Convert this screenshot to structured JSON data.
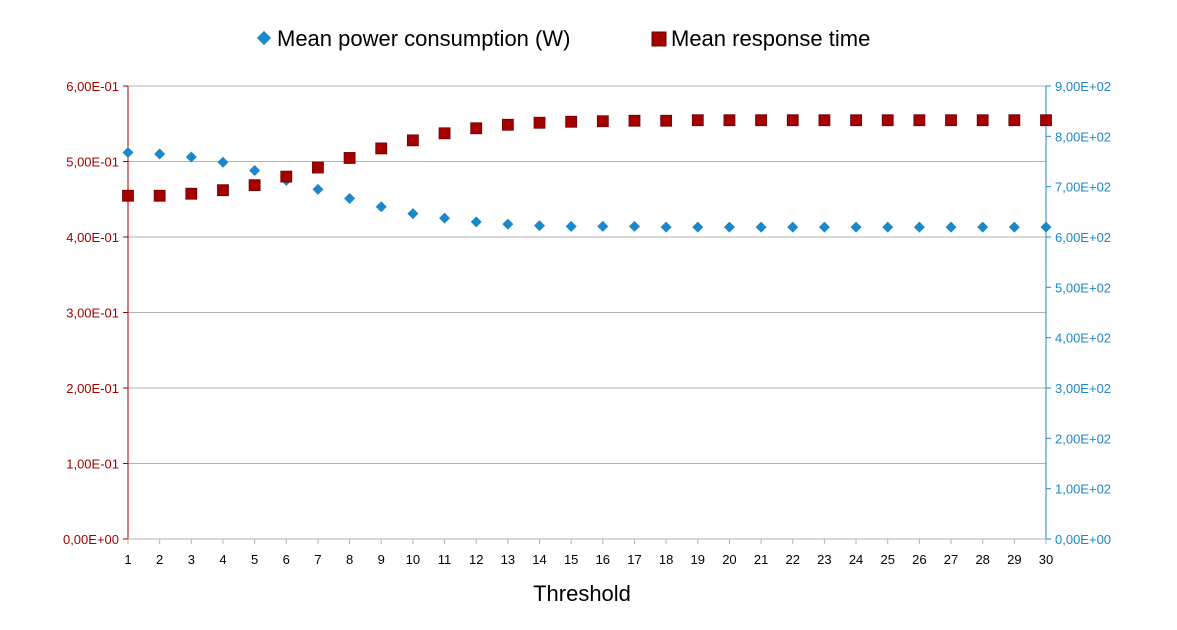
{
  "chart_data": {
    "type": "scatter",
    "xlabel": "Threshold",
    "x": [
      1,
      2,
      3,
      4,
      5,
      6,
      7,
      8,
      9,
      10,
      11,
      12,
      13,
      14,
      15,
      16,
      17,
      18,
      19,
      20,
      21,
      22,
      23,
      24,
      25,
      26,
      27,
      28,
      29,
      30
    ],
    "x_ticks": [
      "1",
      "2",
      "3",
      "4",
      "5",
      "6",
      "7",
      "8",
      "9",
      "10",
      "11",
      "12",
      "13",
      "14",
      "15",
      "16",
      "17",
      "18",
      "19",
      "20",
      "21",
      "22",
      "23",
      "24",
      "25",
      "26",
      "27",
      "28",
      "29",
      "30"
    ],
    "left_axis": {
      "ylim": [
        0,
        0.6
      ],
      "ticks": [
        0,
        0.1,
        0.2,
        0.3,
        0.4,
        0.5,
        0.6
      ],
      "tick_labels": [
        "0,00E+00",
        "1,00E-01",
        "2,00E-01",
        "3,00E-01",
        "4,00E-01",
        "5,00E-01",
        "6,00E-01"
      ],
      "color": "#a50000"
    },
    "right_axis": {
      "ylim": [
        0,
        900
      ],
      "ticks": [
        0,
        100,
        200,
        300,
        400,
        500,
        600,
        700,
        800,
        900
      ],
      "tick_labels": [
        "0,00E+00",
        "1,00E+02",
        "2,00E+02",
        "3,00E+02",
        "4,00E+02",
        "5,00E+02",
        "6,00E+02",
        "7,00E+02",
        "8,00E+02",
        "9,00E+02"
      ],
      "color": "#1b88c9"
    },
    "grid": true,
    "legend_position": "top-center",
    "series": [
      {
        "name": "Mean power consumption (W)",
        "axis": "left",
        "marker": "diamond",
        "color": "#1b88c9",
        "values": [
          0.512,
          0.51,
          0.506,
          0.499,
          0.488,
          0.475,
          0.463,
          0.451,
          0.44,
          0.431,
          0.425,
          0.42,
          0.417,
          0.415,
          0.414,
          0.414,
          0.414,
          0.413,
          0.413,
          0.413,
          0.413,
          0.413,
          0.413,
          0.413,
          0.413,
          0.413,
          0.413,
          0.413,
          0.413,
          0.413
        ]
      },
      {
        "name": "Mean response time",
        "axis": "right",
        "marker": "square",
        "color": "#a50000",
        "values": [
          682,
          682,
          686,
          693,
          703,
          720,
          738,
          757,
          776,
          792,
          806,
          816,
          823,
          827,
          829,
          830,
          831,
          831,
          832,
          832,
          832,
          832,
          832,
          832,
          832,
          832,
          832,
          832,
          832,
          832
        ]
      }
    ]
  }
}
